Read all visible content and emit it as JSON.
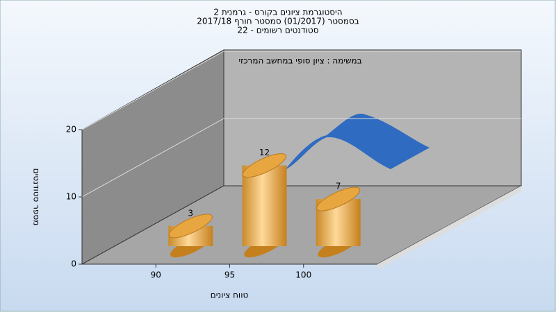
{
  "chart_data": {
    "type": "bar3d",
    "title_lines": [
      "היסטוגרמת ציונים בקורס - גרמנית 2",
      "בסמסטר  (01/2017)  סמסטר חורף 2017/18",
      "סטודנטים רשומים - 22"
    ],
    "annotation": "במשימה : ציון סופי במחשב המרכזי",
    "x_label": "טווח ציונים",
    "y_label": "מספר סטודנטים",
    "x": [
      90,
      95,
      100
    ],
    "values": [
      3,
      12,
      7
    ],
    "color": "#e8a640",
    "xlim": [
      85,
      105
    ],
    "xticks": [
      90,
      95,
      100
    ],
    "ylim": [
      0,
      20
    ],
    "yticks": [
      0,
      10,
      20
    ],
    "grid": true
  }
}
